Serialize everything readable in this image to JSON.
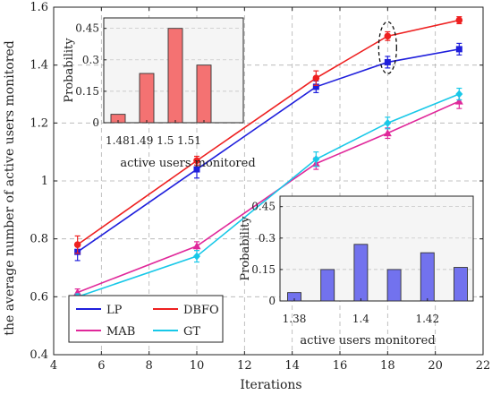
{
  "chart_data": [
    {
      "type": "line",
      "title": "",
      "xlabel": "Iterations",
      "ylabel": "the average number of active users monitored",
      "xlim": [
        4,
        22
      ],
      "ylim": [
        0.4,
        1.6
      ],
      "xticks": [
        4,
        6,
        8,
        10,
        12,
        14,
        16,
        18,
        20,
        22
      ],
      "yticks": [
        0.4,
        0.6,
        0.8,
        1,
        1.2,
        1.4,
        1.6
      ],
      "grid": true,
      "legend_position": "bottom-left",
      "x": [
        5,
        10,
        15,
        18,
        21
      ],
      "series": [
        {
          "name": "LP",
          "color": "#1f1fdc",
          "marker": "square",
          "values": [
            0.755,
            1.04,
            1.325,
            1.41,
            1.455
          ],
          "errors": [
            0.03,
            0.03,
            0.02,
            0.02,
            0.02
          ]
        },
        {
          "name": "DBFO",
          "color": "#ee2020",
          "marker": "circle",
          "values": [
            0.78,
            1.07,
            1.355,
            1.5,
            1.555
          ],
          "errors": [
            0.03,
            0.015,
            0.025,
            0.015,
            0.012
          ]
        },
        {
          "name": "MAB",
          "color": "#e0289a",
          "marker": "triangle",
          "values": [
            0.615,
            0.775,
            1.06,
            1.165,
            1.275
          ],
          "errors": [
            0.012,
            0.015,
            0.02,
            0.018,
            0.025
          ]
        },
        {
          "name": "GT",
          "color": "#18c8e8",
          "marker": "diamond",
          "values": [
            0.6,
            0.74,
            1.075,
            1.2,
            1.3
          ],
          "errors": [
            0.01,
            0.02,
            0.025,
            0.02,
            0.02
          ]
        }
      ],
      "annotation": {
        "type": "dashed-ellipse",
        "x": 18,
        "y": 1.46
      }
    },
    {
      "type": "bar",
      "xlabel": "active users monitored",
      "ylabel": "Probability",
      "categories": [
        "1.48",
        "1.49",
        "1.5",
        "1.51"
      ],
      "tick_text": "1.481.49 1.5 1.51",
      "values": [
        0.04,
        0.235,
        0.45,
        0.275
      ],
      "yticks": [
        "0",
        "0.15",
        "0.3",
        "0.45"
      ],
      "ylim": [
        0,
        0.5
      ],
      "color": "#f47272"
    },
    {
      "type": "bar",
      "xlabel": "active users monitored",
      "ylabel": "Probability",
      "x": [
        1.38,
        1.39,
        1.4,
        1.41,
        1.42,
        1.43
      ],
      "xticks": [
        "1.38",
        "1.4",
        "1.42"
      ],
      "values": [
        0.04,
        0.15,
        0.27,
        0.15,
        0.23,
        0.16
      ],
      "yticks": [
        "0",
        "0.15",
        "0.3",
        "0.45"
      ],
      "ylim": [
        0,
        0.5
      ],
      "color": "#7272ee"
    }
  ]
}
